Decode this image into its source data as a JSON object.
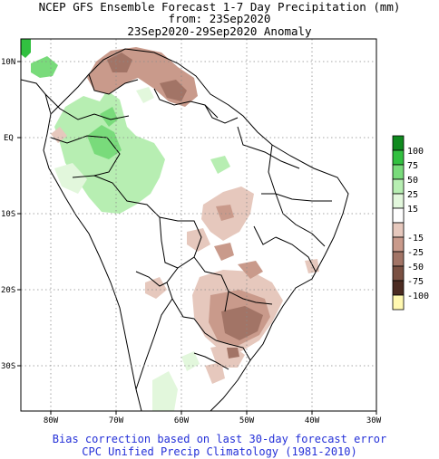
{
  "header": {
    "line1": "NCEP GFS Ensemble Forecast 1-7 Day Precipitation (mm)",
    "line2": "from: 23Sep2020",
    "line3": "23Sep2020-29Sep2020 Anomaly"
  },
  "axes": {
    "lat_labels": [
      "10N",
      "EQ",
      "10S",
      "20S",
      "30S"
    ],
    "lon_labels": [
      "80W",
      "70W",
      "60W",
      "50W",
      "40W",
      "30W"
    ]
  },
  "legend": {
    "items": [
      {
        "label": "100",
        "color": "#0f8a1e"
      },
      {
        "label": "75",
        "color": "#32c040"
      },
      {
        "label": "50",
        "color": "#79db7b"
      },
      {
        "label": "25",
        "color": "#b7eeb2"
      },
      {
        "label": "15",
        "color": "#e2f7dc"
      },
      {
        "label": "",
        "color": "#ffffff"
      },
      {
        "label": "-15",
        "color": "#e6c8bd"
      },
      {
        "label": "-25",
        "color": "#c99a8b"
      },
      {
        "label": "-50",
        "color": "#a27466"
      },
      {
        "label": "-75",
        "color": "#7a5042"
      },
      {
        "label": "-100",
        "color": "#4c2c22"
      },
      {
        "label": "",
        "color": "#fff8b0"
      }
    ]
  },
  "footer": {
    "line1": "Bias correction based on last 30-day forecast error",
    "line2": "CPC Unified Precip Climatology (1981-2010)"
  },
  "colors": {
    "footer_text": "#2430d8",
    "grid": "#8a8a8a"
  }
}
